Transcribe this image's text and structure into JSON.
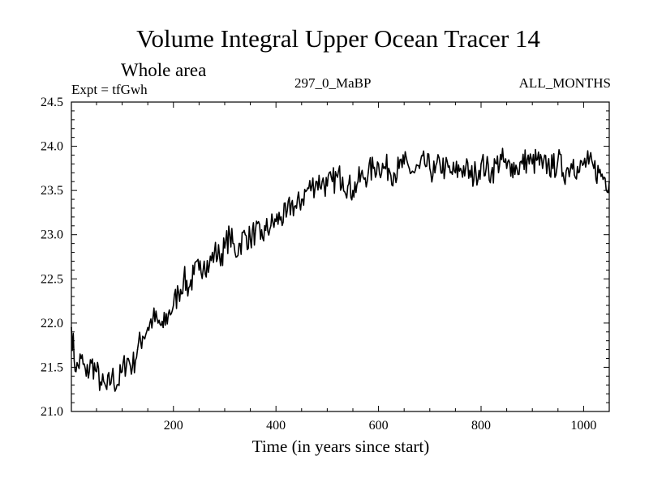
{
  "chart_data": {
    "type": "line",
    "title": "Volume Integral Upper Ocean Tracer 14",
    "subtitle": "Whole area",
    "expt_label": "Expt = tfGwh",
    "run_label": "297_0_MaBP",
    "months_label": "ALL_MONTHS",
    "xlabel": "Time (in years since start)",
    "ylabel": "",
    "xlim": [
      1,
      1050
    ],
    "ylim": [
      21.0,
      24.5
    ],
    "x_ticks": [
      200,
      400,
      600,
      800,
      1000
    ],
    "x_tick_labels": [
      "200",
      "400",
      "600",
      "800",
      "1000"
    ],
    "y_ticks": [
      21.0,
      21.5,
      22.0,
      22.5,
      23.0,
      23.5,
      24.0,
      24.5
    ],
    "y_tick_labels": [
      "21.0",
      "21.5",
      "22.0",
      "22.5",
      "23.0",
      "23.5",
      "24.0",
      "24.5"
    ],
    "grid": false,
    "series": [
      {
        "name": "Volume Integral Upper Ocean Tracer 14",
        "x": [
          1,
          10,
          20,
          30,
          40,
          50,
          60,
          70,
          80,
          90,
          100,
          110,
          120,
          130,
          140,
          150,
          160,
          170,
          180,
          190,
          200,
          210,
          220,
          230,
          240,
          250,
          260,
          270,
          280,
          290,
          300,
          310,
          320,
          330,
          340,
          350,
          360,
          370,
          380,
          390,
          400,
          410,
          420,
          430,
          440,
          450,
          460,
          470,
          480,
          490,
          500,
          510,
          520,
          530,
          540,
          550,
          560,
          570,
          580,
          590,
          600,
          610,
          620,
          630,
          640,
          650,
          660,
          670,
          680,
          690,
          700,
          710,
          720,
          730,
          740,
          750,
          760,
          770,
          780,
          790,
          800,
          810,
          820,
          830,
          840,
          850,
          860,
          870,
          880,
          890,
          900,
          910,
          920,
          930,
          940,
          950,
          960,
          970,
          980,
          990,
          1000,
          1010,
          1020,
          1030,
          1040,
          1050
        ],
        "values": [
          21.95,
          21.45,
          21.6,
          21.4,
          21.55,
          21.45,
          21.3,
          21.25,
          21.4,
          21.3,
          21.45,
          21.6,
          21.5,
          21.7,
          21.85,
          21.95,
          22.05,
          22.0,
          21.95,
          22.1,
          22.2,
          22.35,
          22.5,
          22.4,
          22.55,
          22.6,
          22.7,
          22.65,
          22.8,
          22.75,
          22.85,
          23.0,
          22.8,
          22.9,
          23.0,
          22.95,
          23.05,
          22.95,
          23.05,
          23.1,
          23.15,
          23.2,
          23.2,
          23.35,
          23.3,
          23.4,
          23.5,
          23.55,
          23.6,
          23.6,
          23.55,
          23.6,
          23.65,
          23.65,
          23.55,
          23.5,
          23.6,
          23.65,
          23.7,
          23.75,
          23.8,
          23.75,
          23.75,
          23.7,
          23.75,
          23.8,
          23.75,
          23.7,
          23.75,
          23.8,
          23.75,
          23.7,
          23.8,
          23.75,
          23.7,
          23.7,
          23.75,
          23.75,
          23.65,
          23.7,
          23.8,
          23.75,
          23.7,
          23.8,
          23.85,
          23.75,
          23.8,
          23.75,
          23.8,
          23.85,
          23.8,
          23.85,
          23.75,
          23.8,
          23.75,
          23.85,
          23.7,
          23.75,
          23.85,
          23.7,
          23.8,
          23.8,
          23.75,
          23.7,
          23.65,
          23.6
        ]
      }
    ]
  }
}
